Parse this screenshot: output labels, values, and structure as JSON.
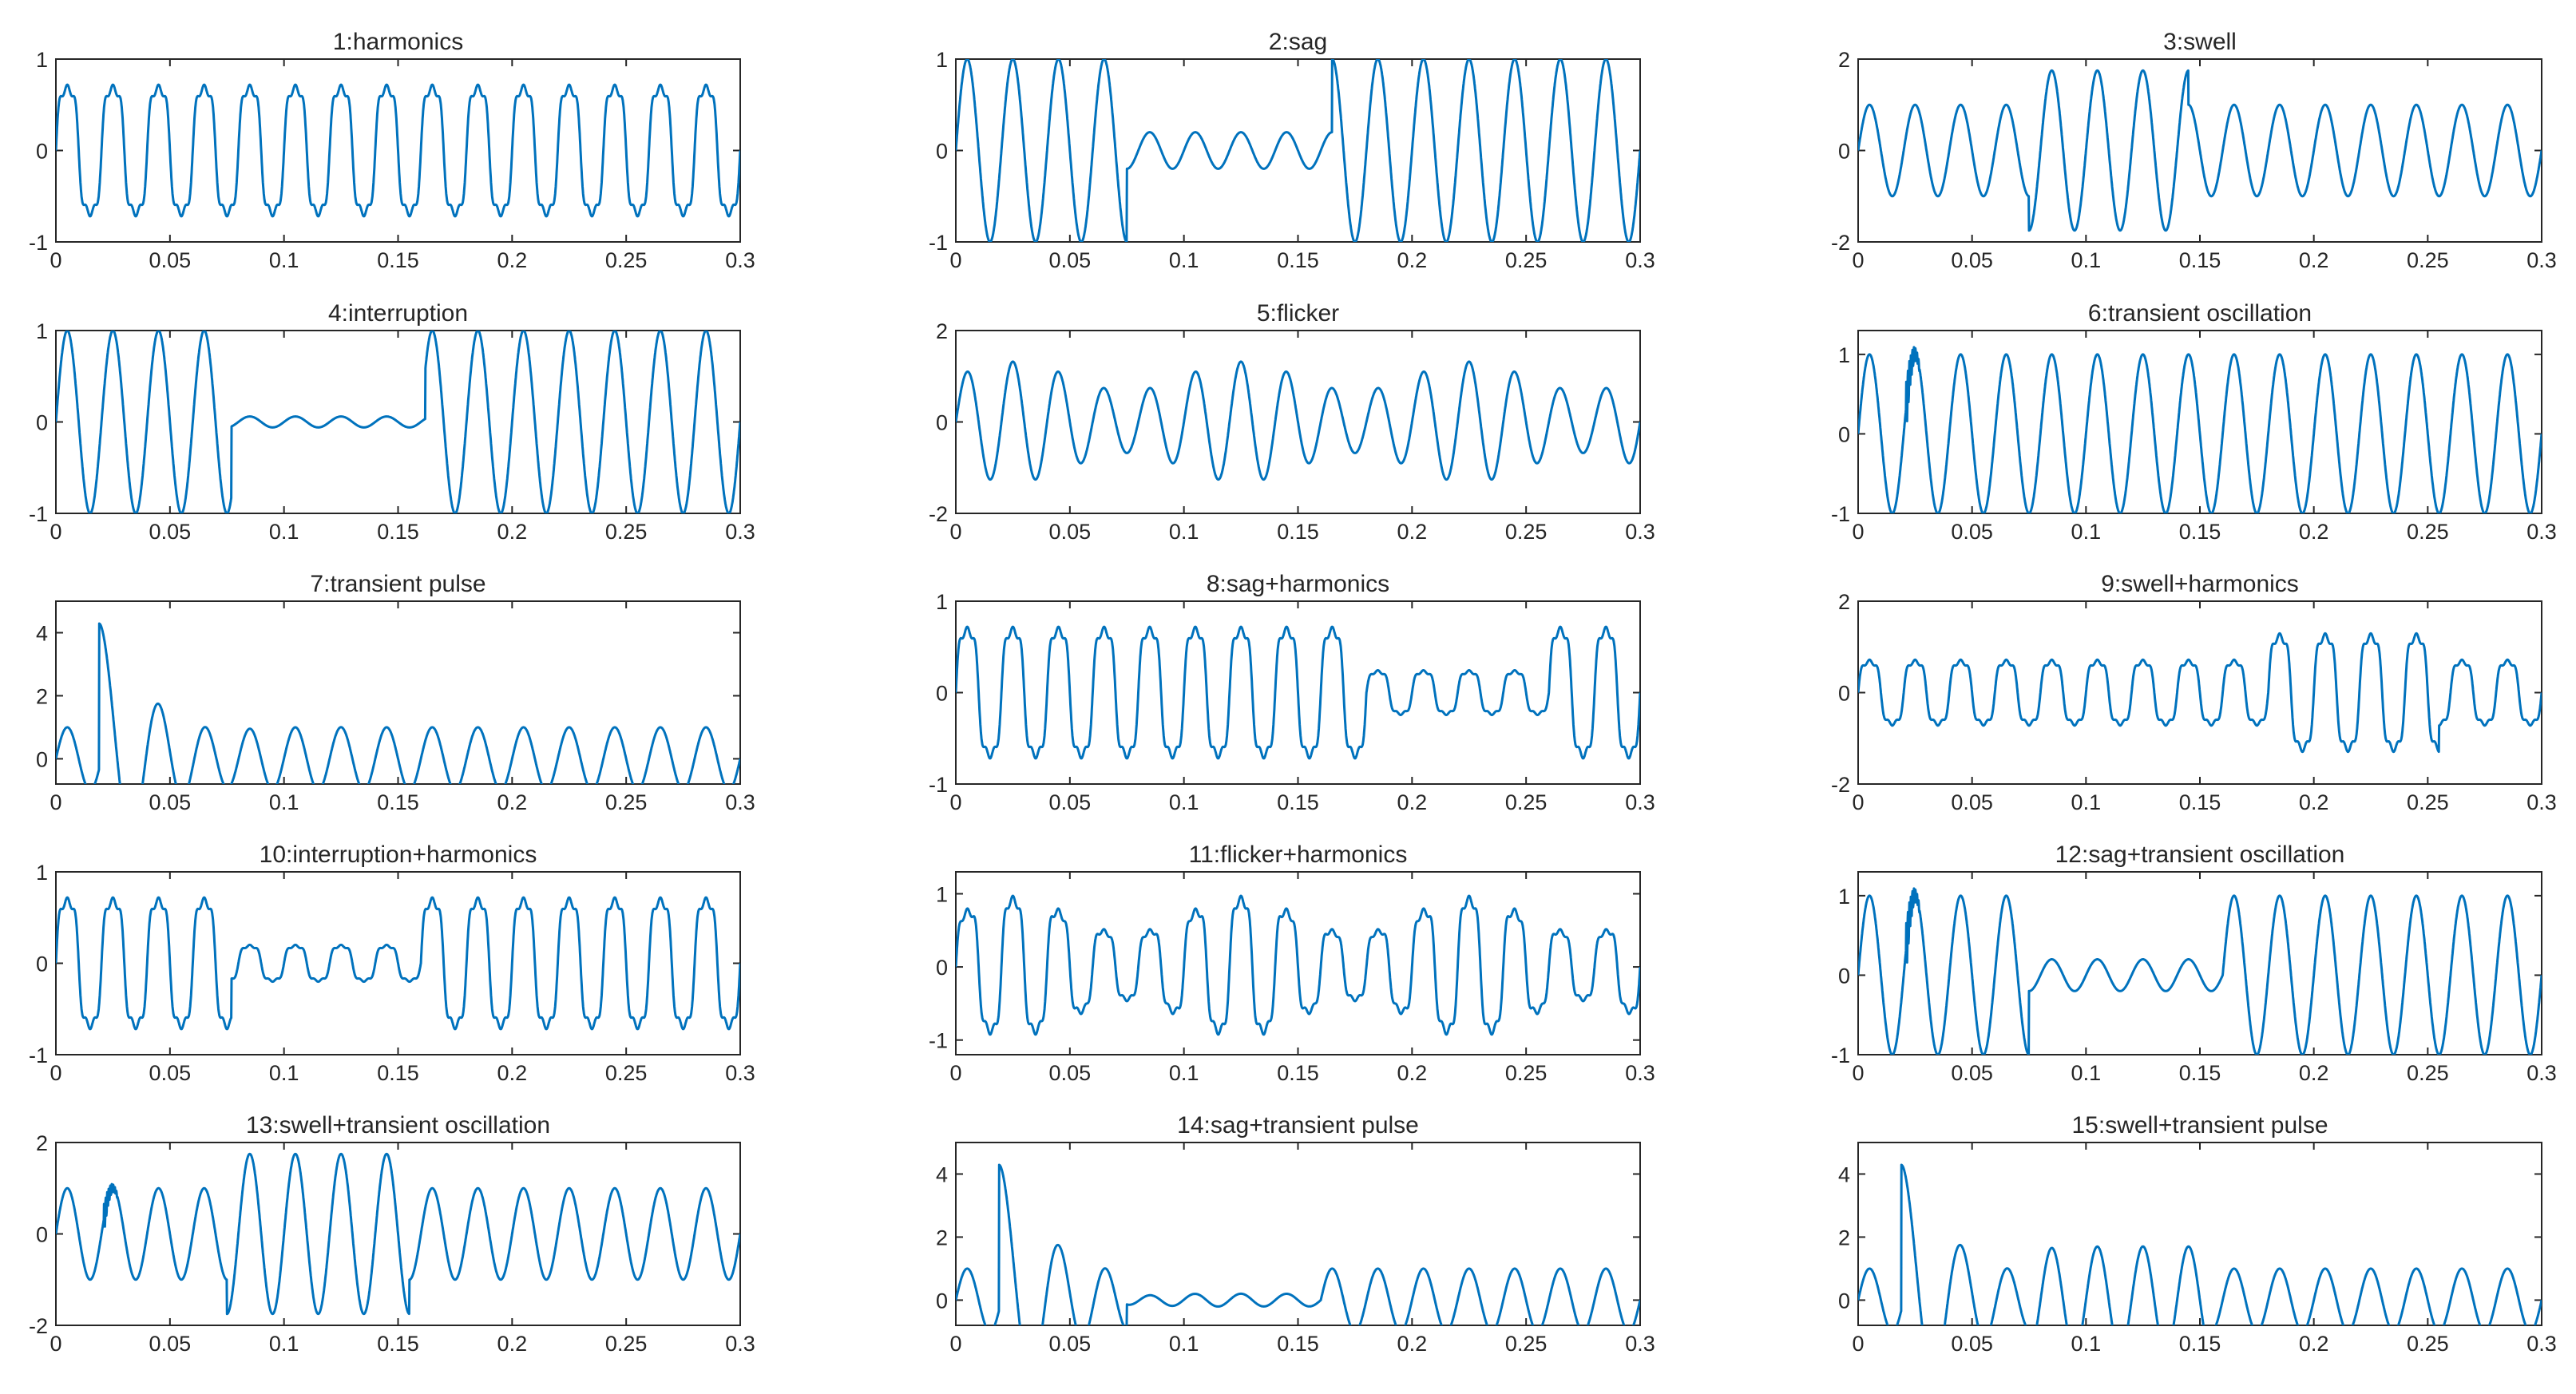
{
  "figure": {
    "line_color": "#0072bd"
  },
  "chart_data": [
    {
      "id": 1,
      "type": "line",
      "title": "1:harmonics",
      "kind": "harmonics",
      "xlim": [
        0,
        0.3
      ],
      "ylim": [
        -1,
        1
      ],
      "yticks": [
        "-1",
        "0",
        "1"
      ],
      "xticks": [
        "0",
        "0.05",
        "0.1",
        "0.15",
        "0.2",
        "0.25",
        "0.3"
      ]
    },
    {
      "id": 2,
      "type": "line",
      "title": "2:sag",
      "kind": "sag",
      "xlim": [
        0,
        0.3
      ],
      "ylim": [
        -1,
        1
      ],
      "yticks": [
        "-1",
        "0",
        "1"
      ],
      "xticks": [
        "0",
        "0.05",
        "0.1",
        "0.15",
        "0.2",
        "0.25",
        "0.3"
      ]
    },
    {
      "id": 3,
      "type": "line",
      "title": "3:swell",
      "kind": "swell",
      "xlim": [
        0,
        0.3
      ],
      "ylim": [
        -2,
        2
      ],
      "yticks": [
        "-2",
        "0",
        "2"
      ],
      "xticks": [
        "0",
        "0.05",
        "0.1",
        "0.15",
        "0.2",
        "0.25",
        "0.3"
      ]
    },
    {
      "id": 4,
      "type": "line",
      "title": "4:interruption",
      "kind": "interruption",
      "xlim": [
        0,
        0.3
      ],
      "ylim": [
        -1,
        1
      ],
      "yticks": [
        "-1",
        "0",
        "1"
      ],
      "xticks": [
        "0",
        "0.05",
        "0.1",
        "0.15",
        "0.2",
        "0.25",
        "0.3"
      ]
    },
    {
      "id": 5,
      "type": "line",
      "title": "5:flicker",
      "kind": "flicker",
      "xlim": [
        0,
        0.3
      ],
      "ylim": [
        -2,
        2
      ],
      "yticks": [
        "-2",
        "0",
        "2"
      ],
      "xticks": [
        "0",
        "0.05",
        "0.1",
        "0.15",
        "0.2",
        "0.25",
        "0.3"
      ]
    },
    {
      "id": 6,
      "type": "line",
      "title": "6:transient oscillation",
      "kind": "transient_oscillation",
      "xlim": [
        0,
        0.3
      ],
      "ylim": [
        -1,
        1.3
      ],
      "yticks": [
        "-1",
        "0",
        "1"
      ],
      "xticks": [
        "0",
        "0.05",
        "0.1",
        "0.15",
        "0.2",
        "0.25",
        "0.3"
      ]
    },
    {
      "id": 7,
      "type": "line",
      "title": "7:transient pulse",
      "kind": "transient_pulse",
      "xlim": [
        0,
        0.3
      ],
      "ylim": [
        -0.8,
        5
      ],
      "yticks": [
        "0",
        "2",
        "4"
      ],
      "xticks": [
        "0",
        "0.05",
        "0.1",
        "0.15",
        "0.2",
        "0.25",
        "0.3"
      ]
    },
    {
      "id": 8,
      "type": "line",
      "title": "8:sag+harmonics",
      "kind": "sag_harmonics",
      "xlim": [
        0,
        0.3
      ],
      "ylim": [
        -1,
        1
      ],
      "yticks": [
        "-1",
        "0",
        "1"
      ],
      "xticks": [
        "0",
        "0.05",
        "0.1",
        "0.15",
        "0.2",
        "0.25",
        "0.3"
      ]
    },
    {
      "id": 9,
      "type": "line",
      "title": "9:swell+harmonics",
      "kind": "swell_harmonics",
      "xlim": [
        0,
        0.3
      ],
      "ylim": [
        -2,
        2
      ],
      "yticks": [
        "-2",
        "0",
        "2"
      ],
      "xticks": [
        "0",
        "0.05",
        "0.1",
        "0.15",
        "0.2",
        "0.25",
        "0.3"
      ]
    },
    {
      "id": 10,
      "type": "line",
      "title": "10:interruption+harmonics",
      "kind": "interruption_harmonics",
      "xlim": [
        0,
        0.3
      ],
      "ylim": [
        -1,
        1
      ],
      "yticks": [
        "-1",
        "0",
        "1"
      ],
      "xticks": [
        "0",
        "0.05",
        "0.1",
        "0.15",
        "0.2",
        "0.25",
        "0.3"
      ]
    },
    {
      "id": 11,
      "type": "line",
      "title": "11:flicker+harmonics",
      "kind": "flicker_harmonics",
      "xlim": [
        0,
        0.3
      ],
      "ylim": [
        -1.2,
        1.3
      ],
      "yticks": [
        "-1",
        "0",
        "1"
      ],
      "xticks": [
        "0",
        "0.05",
        "0.1",
        "0.15",
        "0.2",
        "0.25",
        "0.3"
      ]
    },
    {
      "id": 12,
      "type": "line",
      "title": "12:sag+transient oscillation",
      "kind": "sag_transient_oscillation",
      "xlim": [
        0,
        0.3
      ],
      "ylim": [
        -1,
        1.3
      ],
      "yticks": [
        "-1",
        "0",
        "1"
      ],
      "xticks": [
        "0",
        "0.05",
        "0.1",
        "0.15",
        "0.2",
        "0.25",
        "0.3"
      ]
    },
    {
      "id": 13,
      "type": "line",
      "title": "13:swell+transient oscillation",
      "kind": "swell_transient_oscillation",
      "xlim": [
        0,
        0.3
      ],
      "ylim": [
        -2,
        2
      ],
      "yticks": [
        "-2",
        "0",
        "2"
      ],
      "xticks": [
        "0",
        "0.05",
        "0.1",
        "0.15",
        "0.2",
        "0.25",
        "0.3"
      ]
    },
    {
      "id": 14,
      "type": "line",
      "title": "14:sag+transient pulse",
      "kind": "sag_transient_pulse",
      "xlim": [
        0,
        0.3
      ],
      "ylim": [
        -0.8,
        5
      ],
      "yticks": [
        "0",
        "2",
        "4"
      ],
      "xticks": [
        "0",
        "0.05",
        "0.1",
        "0.15",
        "0.2",
        "0.25",
        "0.3"
      ]
    },
    {
      "id": 15,
      "type": "line",
      "title": "15:swell+transient pulse",
      "kind": "swell_transient_pulse",
      "xlim": [
        0,
        0.3
      ],
      "ylim": [
        -0.8,
        5
      ],
      "yticks": [
        "0",
        "2",
        "4"
      ],
      "xticks": [
        "0",
        "0.05",
        "0.1",
        "0.15",
        "0.2",
        "0.25",
        "0.3"
      ]
    }
  ]
}
